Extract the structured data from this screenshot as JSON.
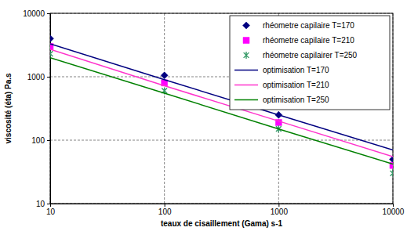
{
  "chart_data": {
    "type": "line",
    "x_label": "teaux de cisaillement  (Gama) s-1",
    "y_label": "viscosité (éta) Pa.s",
    "x": [
      10,
      100,
      1000,
      10000
    ],
    "series": [
      {
        "name": "rhéometre capilaire T=170",
        "type": "scatter",
        "marker": "diamond",
        "color": "#000080",
        "values": [
          4000,
          1050,
          250,
          50
        ]
      },
      {
        "name": "rhéometre capilaire T=210",
        "type": "scatter",
        "marker": "square",
        "color": "#ff00ff",
        "values": [
          3000,
          800,
          190,
          40
        ]
      },
      {
        "name": "rhéometre capilairer T=250",
        "type": "scatter",
        "marker": "asterisk",
        "color": "#339966",
        "values": [
          2300,
          600,
          150,
          30
        ]
      },
      {
        "name": "optimisation T=170",
        "type": "line",
        "line_style": "solid",
        "color": "#000080",
        "values": [
          3300,
          900,
          250,
          70
        ]
      },
      {
        "name": "optimisation T=210",
        "type": "line",
        "line_style": "solid",
        "color": "#ff33cc",
        "values": [
          2700,
          720,
          200,
          55
        ]
      },
      {
        "name": "optimisation T=250",
        "type": "line",
        "line_style": "solid",
        "color": "#008000",
        "values": [
          2000,
          550,
          150,
          42
        ]
      }
    ],
    "log": true,
    "xlim": [
      10,
      10000
    ],
    "ylim": [
      10,
      10000
    ],
    "xticks": [
      10,
      100,
      1000,
      10000
    ],
    "yticks": [
      10,
      100,
      1000,
      10000
    ],
    "grid": true,
    "legend": "upper right"
  }
}
